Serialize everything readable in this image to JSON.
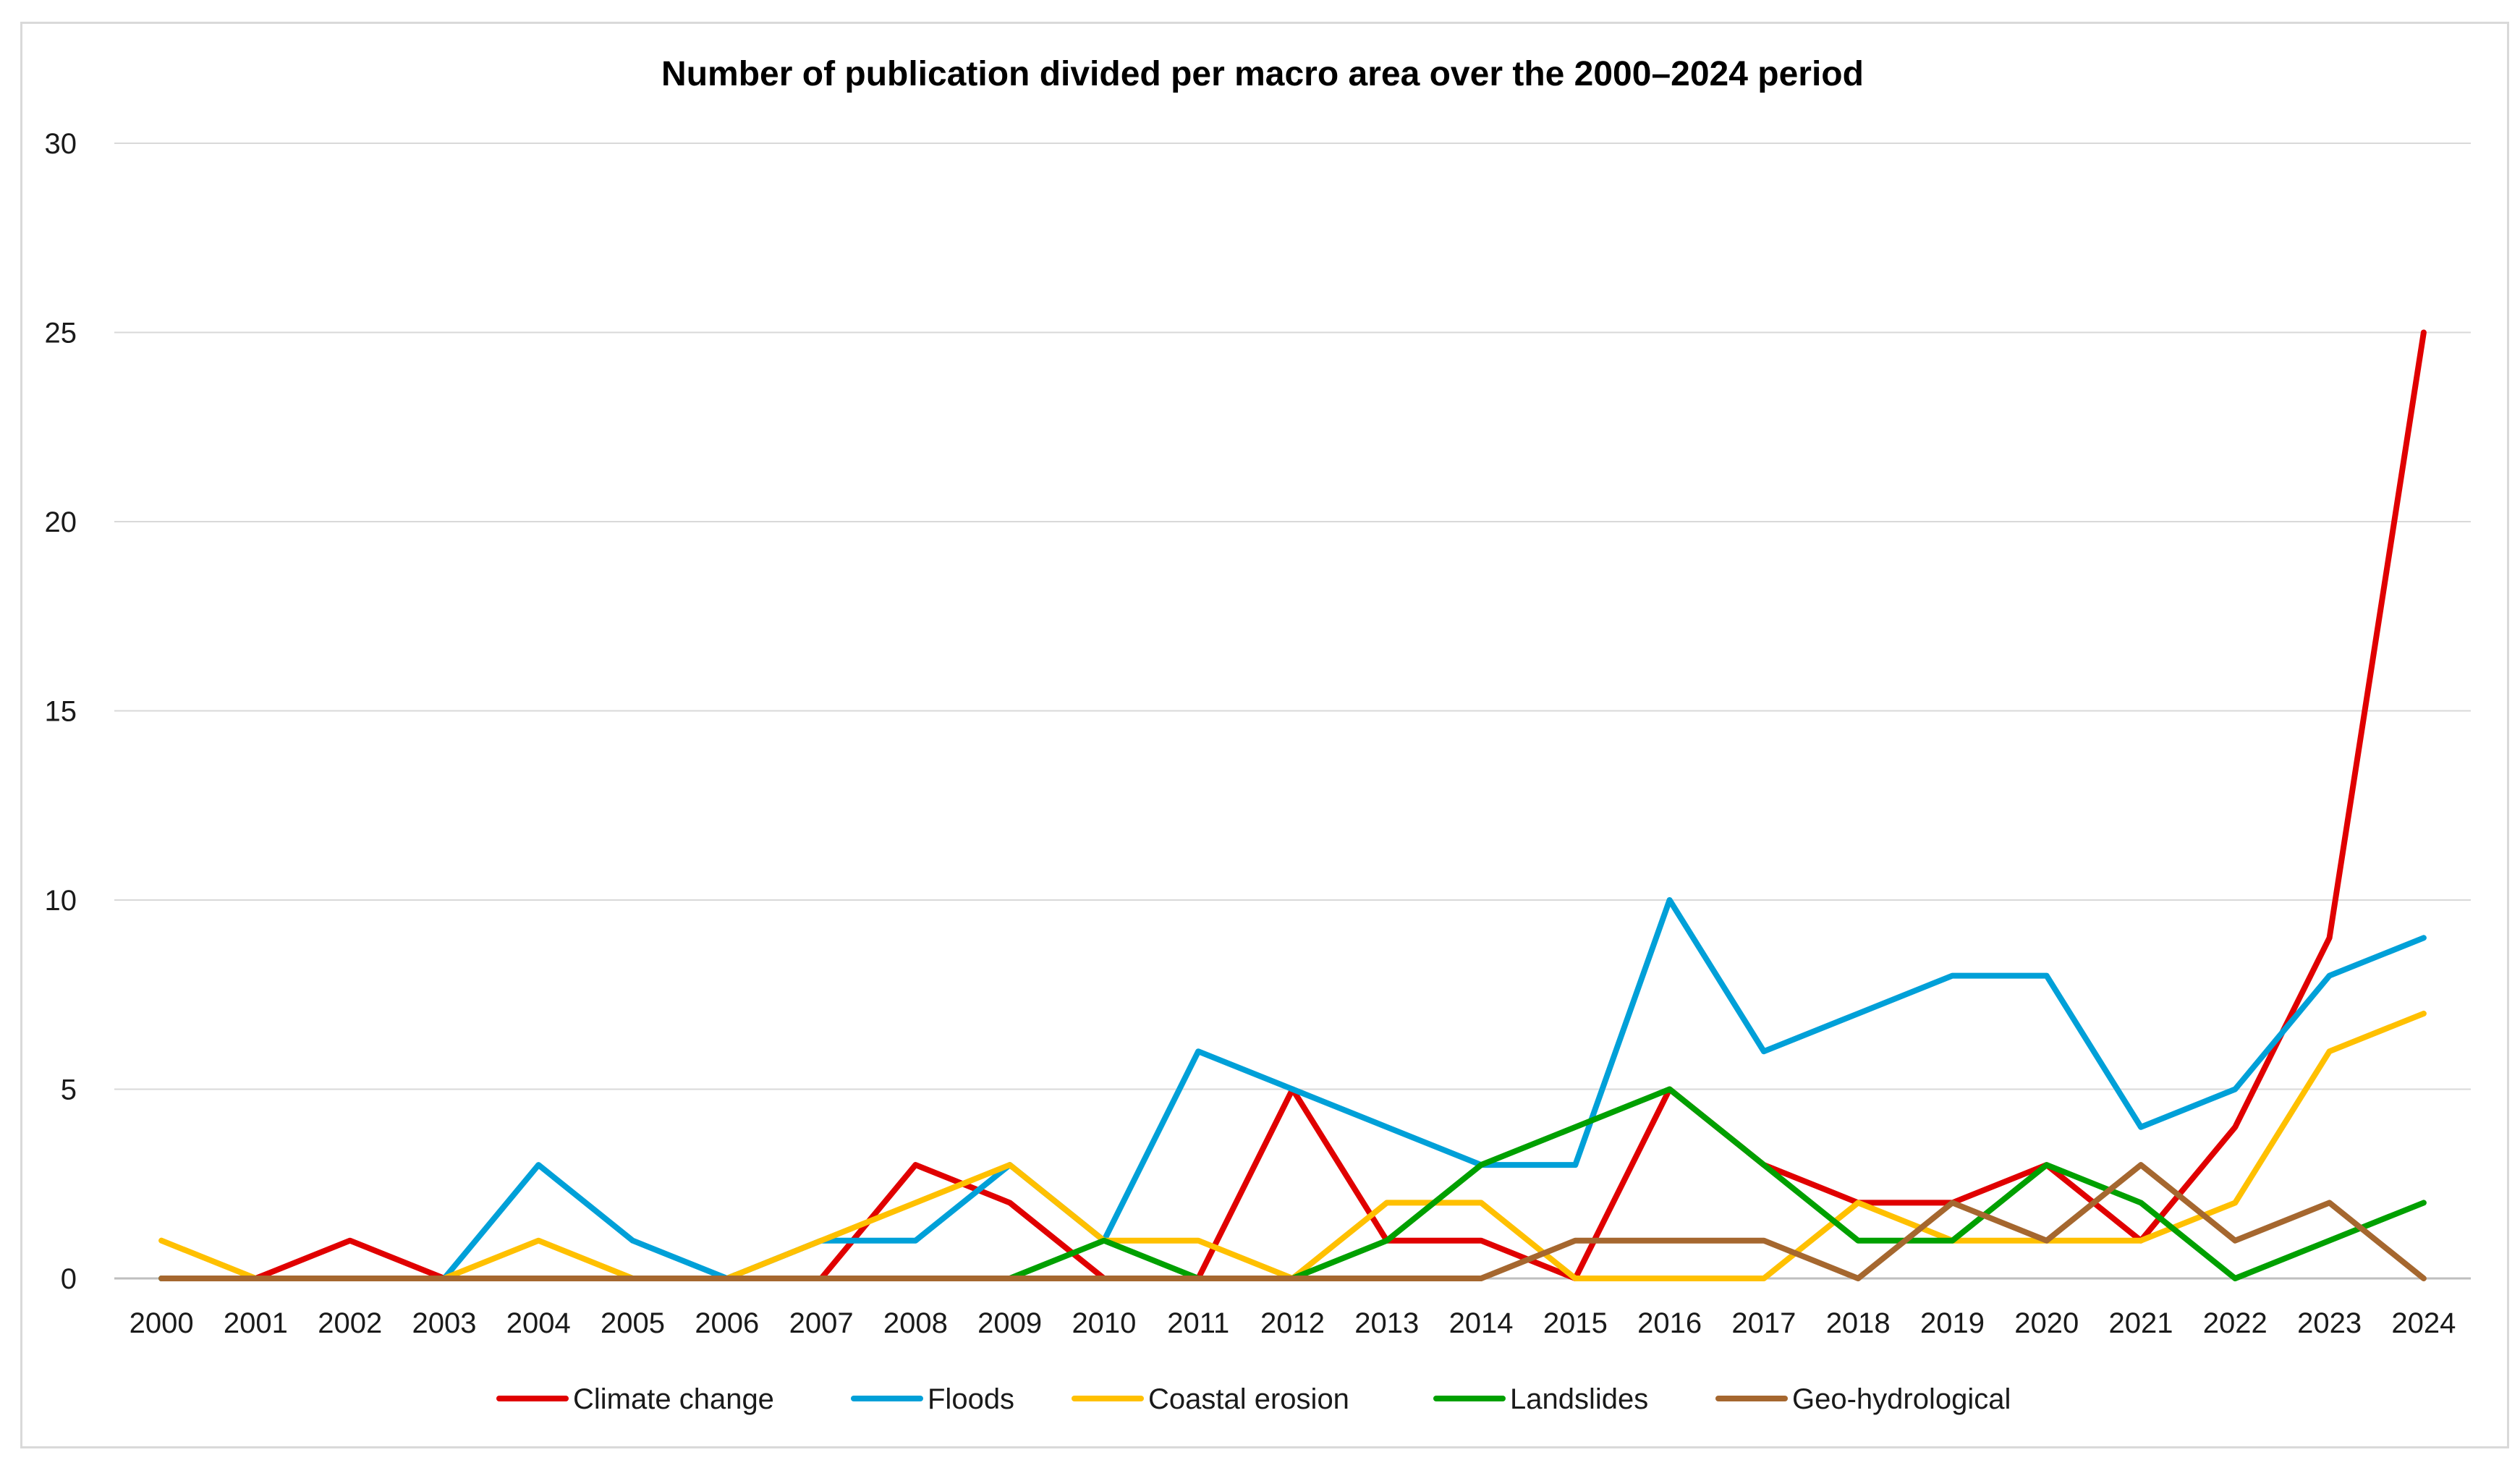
{
  "chart_data": {
    "type": "line",
    "title": "Number of publication divided per macro area over the 2000–2024 period",
    "xlabel": "",
    "ylabel": "",
    "ylim": [
      0,
      30
    ],
    "yticks": [
      0,
      5,
      10,
      15,
      20,
      25,
      30
    ],
    "grid": true,
    "legend_position": "bottom",
    "categories": [
      "2000",
      "2001",
      "2002",
      "2003",
      "2004",
      "2005",
      "2006",
      "2007",
      "2008",
      "2009",
      "2010",
      "2011",
      "2012",
      "2013",
      "2014",
      "2015",
      "2016",
      "2017",
      "2018",
      "2019",
      "2020",
      "2021",
      "2022",
      "2023",
      "2024"
    ],
    "series": [
      {
        "name": "Climate change",
        "color": "#e00000",
        "values": [
          0,
          0,
          1,
          0,
          0,
          0,
          0,
          0,
          3,
          2,
          0,
          0,
          5,
          1,
          1,
          0,
          5,
          3,
          2,
          2,
          3,
          1,
          4,
          9,
          25
        ]
      },
      {
        "name": "Floods",
        "color": "#00a0d8",
        "values": [
          0,
          0,
          0,
          0,
          3,
          1,
          0,
          1,
          1,
          3,
          1,
          6,
          5,
          4,
          3,
          3,
          10,
          6,
          7,
          8,
          8,
          4,
          5,
          8,
          9
        ]
      },
      {
        "name": "Coastal erosion",
        "color": "#ffc000",
        "values": [
          1,
          0,
          0,
          0,
          1,
          0,
          0,
          1,
          2,
          3,
          1,
          1,
          0,
          2,
          2,
          0,
          0,
          0,
          2,
          1,
          1,
          1,
          2,
          6,
          7
        ]
      },
      {
        "name": "Landslides",
        "color": "#00a000",
        "values": [
          0,
          0,
          0,
          0,
          0,
          0,
          0,
          0,
          0,
          0,
          1,
          0,
          0,
          1,
          3,
          4,
          5,
          3,
          1,
          1,
          3,
          2,
          0,
          1,
          2
        ]
      },
      {
        "name": "Geo-hydrological",
        "color": "#a5672f",
        "values": [
          0,
          0,
          0,
          0,
          0,
          0,
          0,
          0,
          0,
          0,
          0,
          0,
          0,
          0,
          0,
          1,
          1,
          1,
          0,
          2,
          1,
          3,
          1,
          2,
          0
        ]
      }
    ]
  }
}
